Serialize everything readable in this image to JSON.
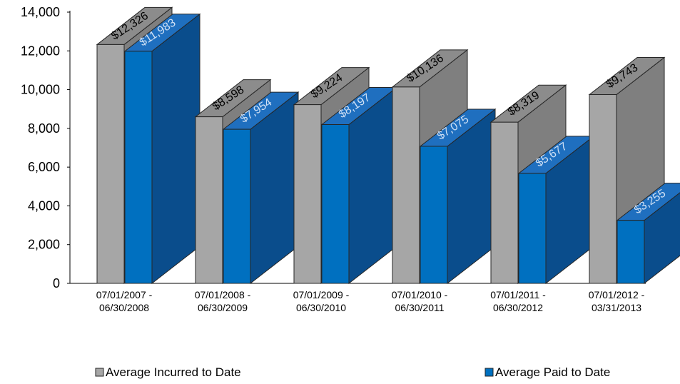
{
  "chart_data": {
    "type": "bar",
    "style": "3d-clustered",
    "categories": [
      [
        "07/01/2007 -",
        "06/30/2008"
      ],
      [
        "07/01/2008 -",
        "06/30/2009"
      ],
      [
        "07/01/2009 -",
        "06/30/2010"
      ],
      [
        "07/01/2010 -",
        "06/30/2011"
      ],
      [
        "07/01/2011 -",
        "06/30/2012"
      ],
      [
        "07/01/2012 -",
        "03/31/2013"
      ]
    ],
    "series": [
      {
        "name": "Average Incurred to Date",
        "values": [
          12326,
          8598,
          9224,
          10136,
          8319,
          9743
        ],
        "labels": [
          "$12,326",
          "$8,598",
          "$9,224",
          "$10,136",
          "$8,319",
          "$9,743"
        ],
        "front_color": "#a6a6a6",
        "side_color": "#7f7f7f",
        "top_color": "#8c8c8c",
        "label_color": "#000000"
      },
      {
        "name": "Average Paid to Date",
        "values": [
          11983,
          7954,
          8197,
          7075,
          5677,
          3255
        ],
        "labels": [
          "$11,983",
          "$7,954",
          "$8,197",
          "$7,075",
          "$5,677",
          "$3,255"
        ],
        "front_color": "#0070c0",
        "side_color": "#0a4d8c",
        "top_color": "#1f6fbf",
        "label_color": "#cfe0f5"
      }
    ],
    "yticks": [
      "0",
      "2,000",
      "4,000",
      "6,000",
      "8,000",
      "10,000",
      "12,000",
      "14,000"
    ],
    "ylim": [
      0,
      14000
    ],
    "legend_position": "bottom",
    "grid": false
  }
}
